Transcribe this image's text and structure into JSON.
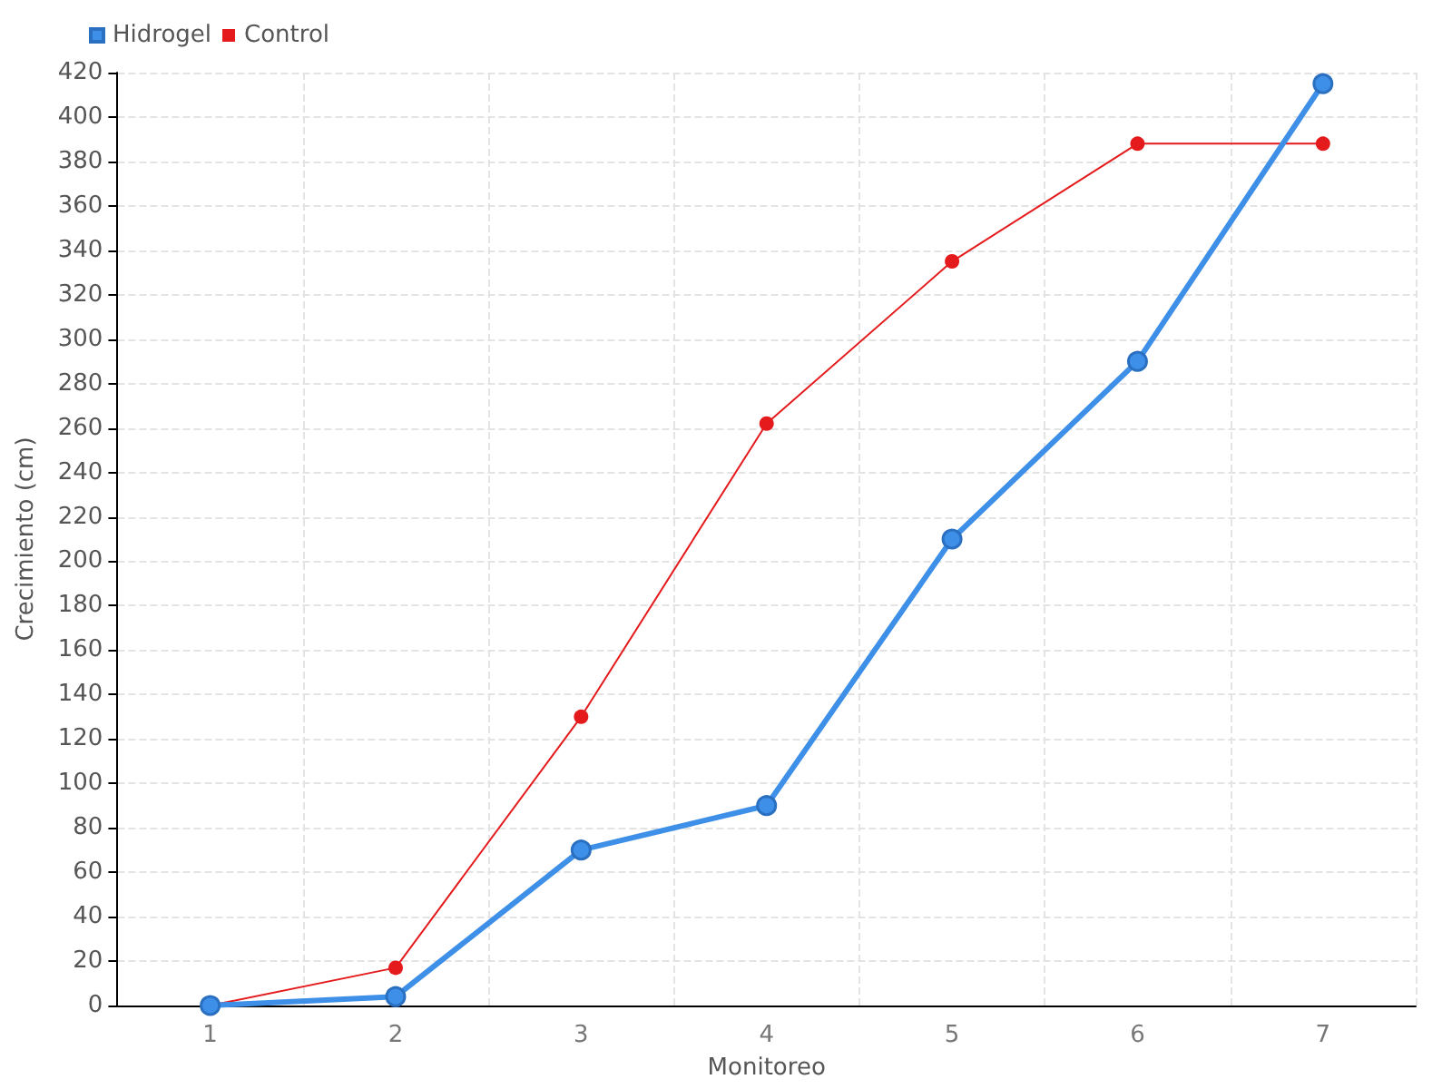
{
  "chart_data": {
    "type": "line",
    "xlabel": "Monitoreo",
    "ylabel": "Crecimiento (cm)",
    "categories": [
      "1",
      "2",
      "3",
      "4",
      "5",
      "6",
      "7"
    ],
    "series": [
      {
        "name": "Hidrogel",
        "color": "#3d8fe8",
        "values": [
          0,
          4,
          70,
          90,
          210,
          290,
          415
        ]
      },
      {
        "name": "Control",
        "color": "#e41a1c",
        "values": [
          0,
          17,
          130,
          262,
          335,
          388,
          388
        ]
      }
    ],
    "ylim": [
      0,
      420
    ],
    "yticks": [
      0,
      20,
      40,
      60,
      80,
      100,
      120,
      140,
      160,
      180,
      200,
      220,
      240,
      260,
      280,
      300,
      320,
      340,
      360,
      380,
      400,
      420
    ],
    "grid": true,
    "legend": "top left",
    "marker": "circle",
    "line_style": "solid"
  }
}
